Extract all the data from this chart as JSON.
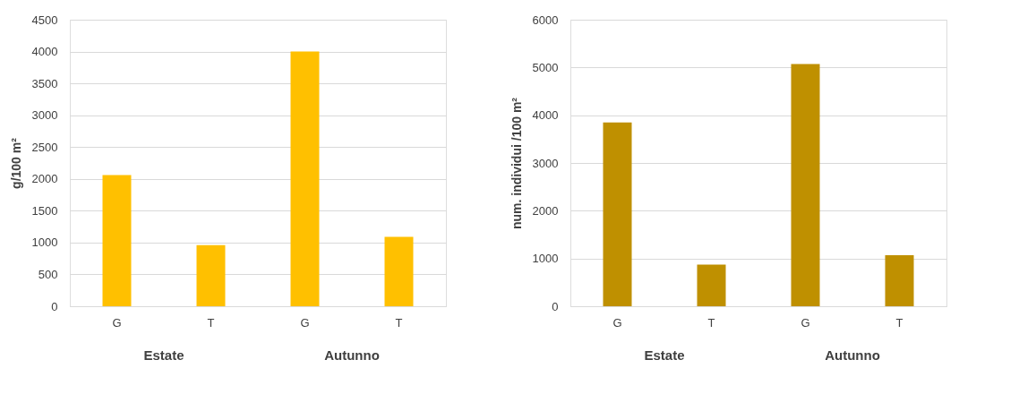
{
  "chart_data": [
    {
      "type": "bar",
      "ylabel": "g/100 m²",
      "categories": [
        "G",
        "T",
        "G",
        "T"
      ],
      "values": [
        2060,
        960,
        4000,
        1090
      ],
      "color": "#ffc000",
      "ylim": [
        0,
        4500
      ],
      "yticks": [
        0,
        500,
        1000,
        1500,
        2000,
        2500,
        3000,
        3500,
        4000,
        4500
      ],
      "grid": "y",
      "annotations": [
        "Estate",
        "Autunno"
      ]
    },
    {
      "type": "bar",
      "ylabel": "num. individui /100 m²",
      "categories": [
        "G",
        "T",
        "G",
        "T"
      ],
      "values": [
        3850,
        870,
        5070,
        1070
      ],
      "color": "#bf9000",
      "ylim": [
        0,
        6000
      ],
      "yticks": [
        0,
        1000,
        2000,
        3000,
        4000,
        5000,
        6000
      ],
      "grid": "y",
      "annotations": [
        "Estate",
        "Autunno"
      ]
    }
  ]
}
